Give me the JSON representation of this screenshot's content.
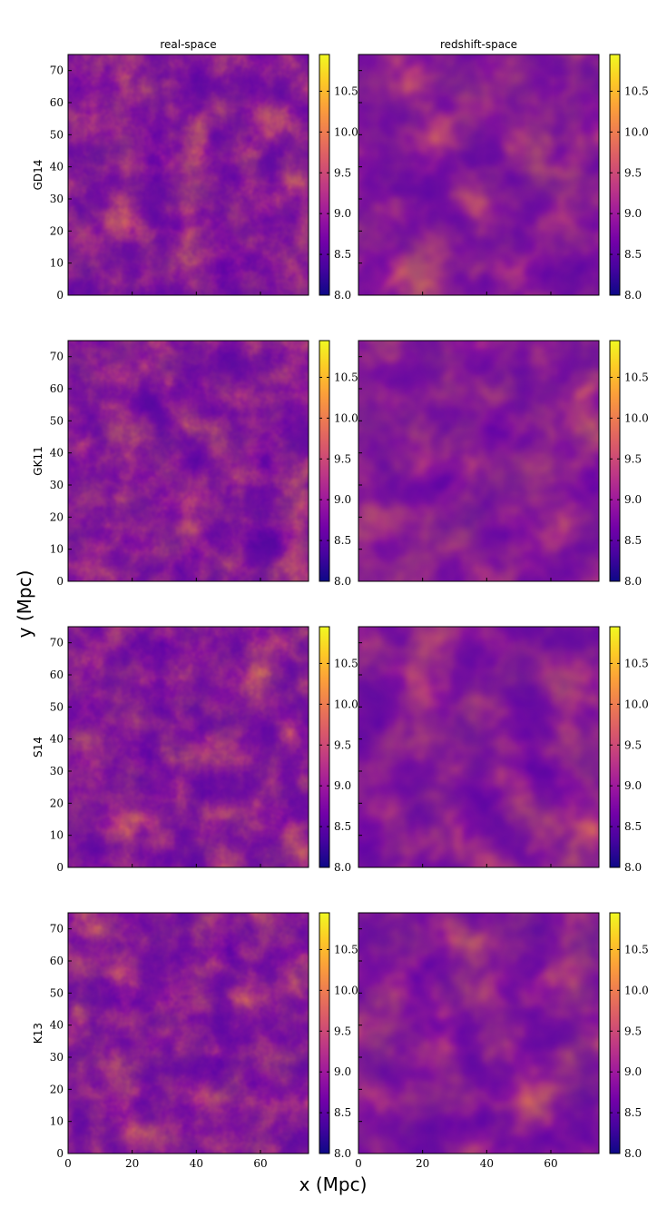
{
  "figure": {
    "supxlabel": "x (Mpc)",
    "supylabel": "y (Mpc)",
    "colormap": [
      "#0d0887",
      "#46039f",
      "#7201a8",
      "#9c179e",
      "#bd3786",
      "#d8576b",
      "#ed7953",
      "#fb9f3a",
      "#fdca26",
      "#f0f921"
    ]
  },
  "chart_data": {
    "type": "heatmap",
    "column_titles": [
      "real-space",
      "redshift-space"
    ],
    "row_labels": [
      "GD14",
      "GK11",
      "S14",
      "K13"
    ],
    "x_ticks": [
      0,
      20,
      40,
      60
    ],
    "y_ticks": [
      0,
      10,
      20,
      30,
      40,
      50,
      60,
      70
    ],
    "xlim": [
      0,
      75
    ],
    "ylim": [
      0,
      75
    ],
    "colorbar_ticks": [
      "8.0",
      "8.5",
      "9.0",
      "9.5",
      "10.0",
      "10.5"
    ],
    "colorbar_range": [
      8.0,
      10.95
    ]
  }
}
